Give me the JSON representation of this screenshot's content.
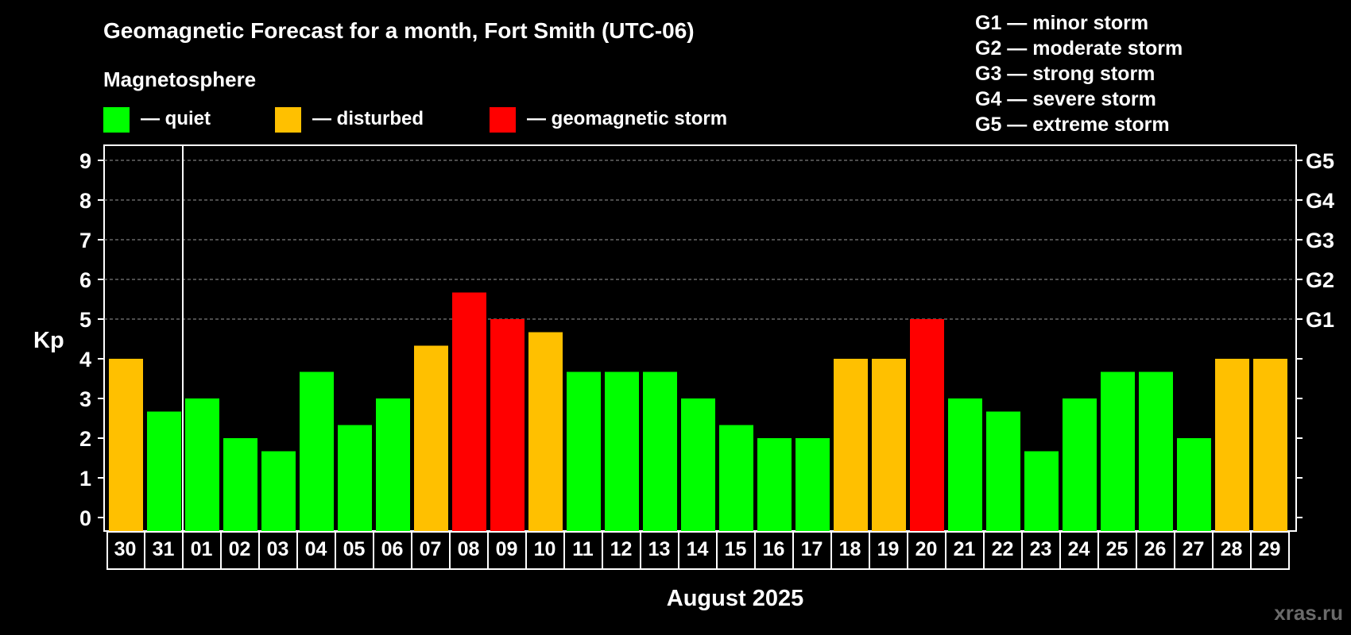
{
  "header": {
    "title": "Geomagnetic Forecast for a month, Fort Smith (UTC-06)",
    "legend_title": "Magnetosphere"
  },
  "legend": [
    {
      "label": "— quiet",
      "color": "#00ff00"
    },
    {
      "label": "— disturbed",
      "color": "#ffc000"
    },
    {
      "label": "— geomagnetic storm",
      "color": "#ff0000"
    }
  ],
  "storm_scale": [
    "G1 — minor storm",
    "G2 — moderate storm",
    "G3 — strong storm",
    "G4 — severe storm",
    "G5 — extreme storm"
  ],
  "watermark": "xras.ru",
  "chart_data": {
    "type": "bar",
    "title": "Geomagnetic Forecast for a month, Fort Smith (UTC-06)",
    "xlabel": "August 2025",
    "ylabel": "Kp",
    "ylim": [
      0,
      9
    ],
    "yticks": [
      "0",
      "1",
      "2",
      "3",
      "4",
      "5",
      "6",
      "7",
      "8",
      "9"
    ],
    "right_axis_labels": [
      {
        "kp": 5,
        "label": "G1"
      },
      {
        "kp": 6,
        "label": "G2"
      },
      {
        "kp": 7,
        "label": "G3"
      },
      {
        "kp": 8,
        "label": "G4"
      },
      {
        "kp": 9,
        "label": "G5"
      }
    ],
    "grid": "dashed-horizontal-5-to-9",
    "categories": [
      "30",
      "31",
      "01",
      "02",
      "03",
      "04",
      "05",
      "06",
      "07",
      "08",
      "09",
      "10",
      "11",
      "12",
      "13",
      "14",
      "15",
      "16",
      "17",
      "18",
      "19",
      "20",
      "21",
      "22",
      "23",
      "24",
      "25",
      "26",
      "27",
      "28",
      "29"
    ],
    "values": [
      4,
      2.67,
      3,
      2,
      1.67,
      3.67,
      2.33,
      3,
      4.33,
      5.67,
      5,
      4.67,
      3.67,
      3.67,
      3.67,
      3,
      2.33,
      2,
      2,
      4,
      4,
      5,
      3,
      2.67,
      1.67,
      3,
      3.67,
      3.67,
      2,
      4,
      4
    ],
    "colors": {
      "quiet": "#00ff00",
      "disturbed": "#ffc000",
      "storm": "#ff0000"
    },
    "status": [
      "disturbed",
      "quiet",
      "quiet",
      "quiet",
      "quiet",
      "quiet",
      "quiet",
      "quiet",
      "disturbed",
      "storm",
      "storm",
      "disturbed",
      "quiet",
      "quiet",
      "quiet",
      "quiet",
      "quiet",
      "quiet",
      "quiet",
      "disturbed",
      "disturbed",
      "storm",
      "quiet",
      "quiet",
      "quiet",
      "quiet",
      "quiet",
      "quiet",
      "quiet",
      "disturbed",
      "disturbed"
    ]
  }
}
